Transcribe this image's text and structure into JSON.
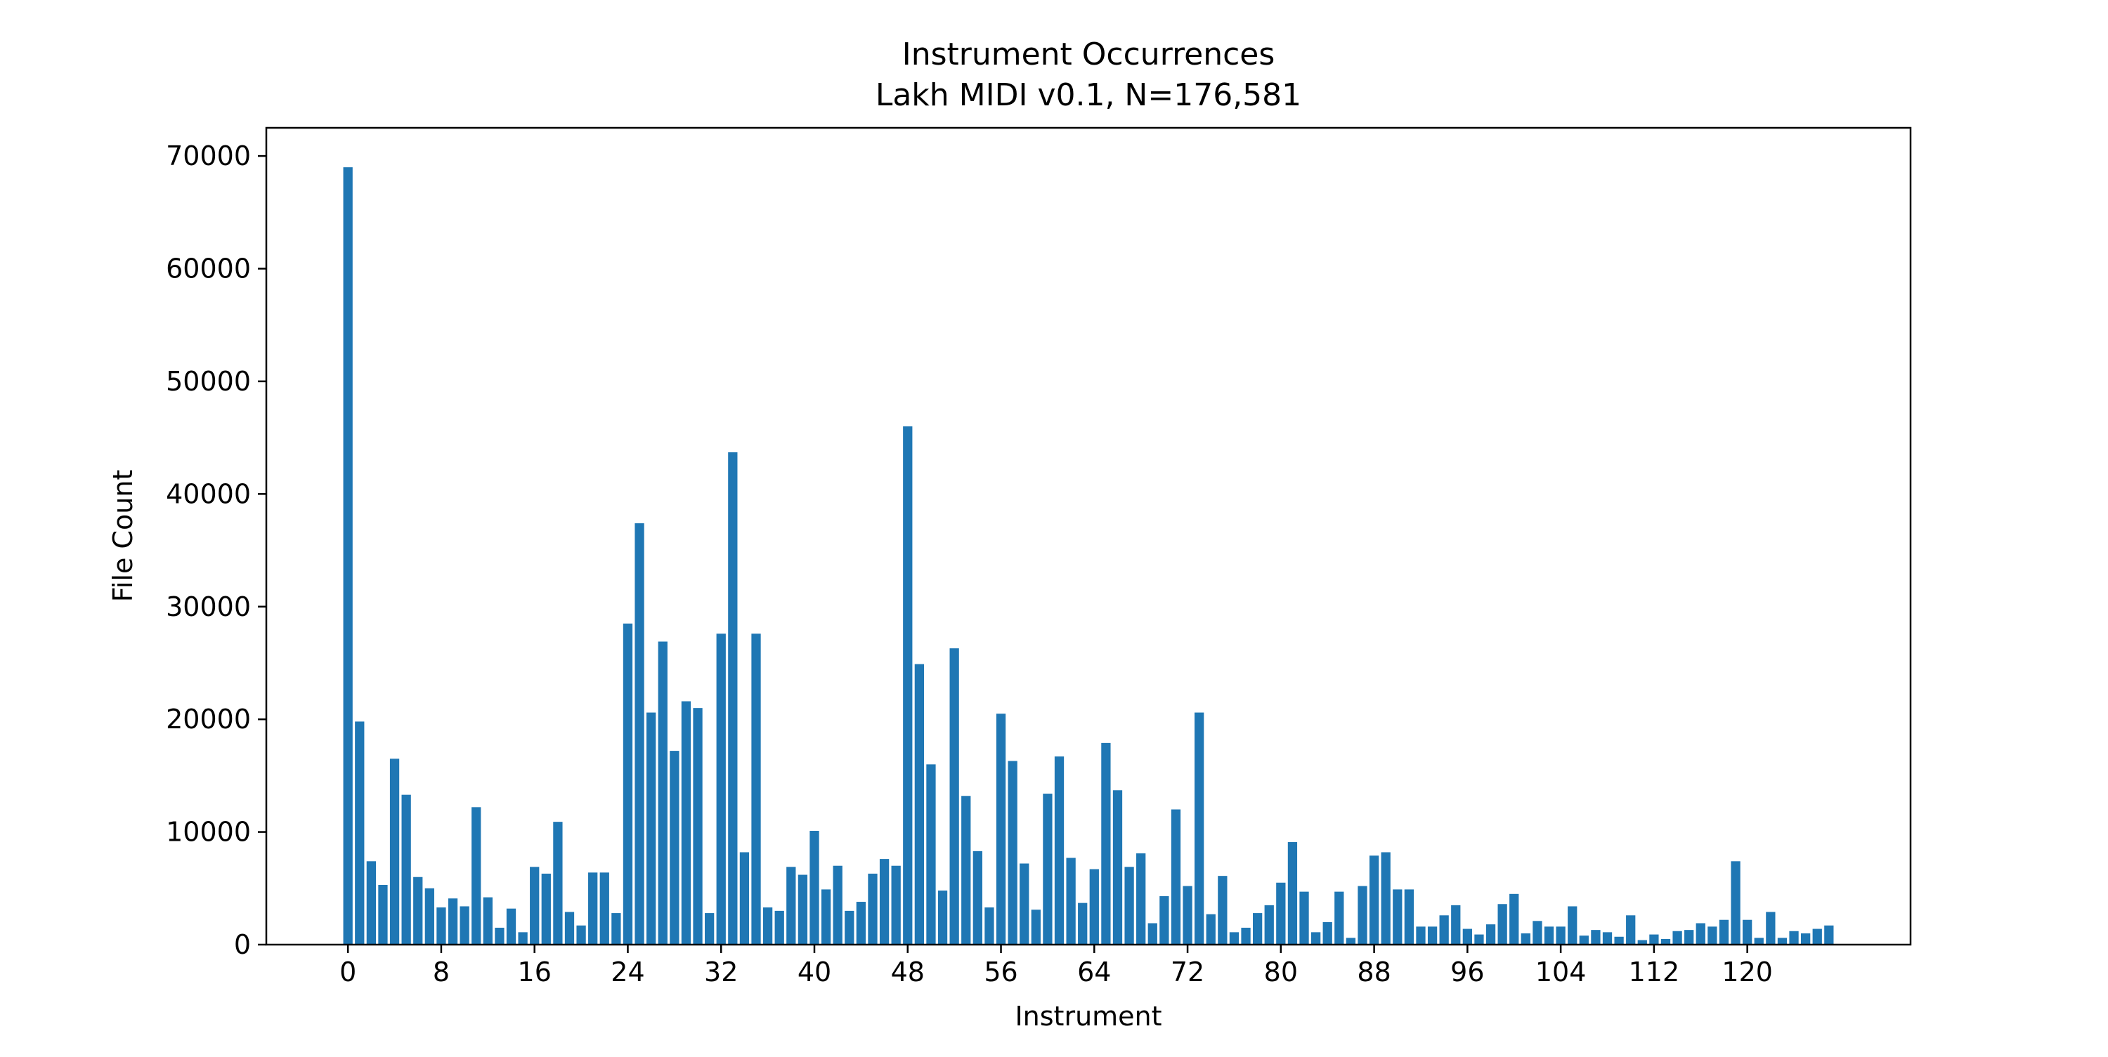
{
  "chart_data": {
    "type": "bar",
    "title": "Instrument Occurrences",
    "subtitle": "Lakh MIDI v0.1, N=176,581",
    "xlabel": "Instrument",
    "ylabel": "File Count",
    "x": [
      0,
      1,
      2,
      3,
      4,
      5,
      6,
      7,
      8,
      9,
      10,
      11,
      12,
      13,
      14,
      15,
      16,
      17,
      18,
      19,
      20,
      21,
      22,
      23,
      24,
      25,
      26,
      27,
      28,
      29,
      30,
      31,
      32,
      33,
      34,
      35,
      36,
      37,
      38,
      39,
      40,
      41,
      42,
      43,
      44,
      45,
      46,
      47,
      48,
      49,
      50,
      51,
      52,
      53,
      54,
      55,
      56,
      57,
      58,
      59,
      60,
      61,
      62,
      63,
      64,
      65,
      66,
      67,
      68,
      69,
      70,
      71,
      72,
      73,
      74,
      75,
      76,
      77,
      78,
      79,
      80,
      81,
      82,
      83,
      84,
      85,
      86,
      87,
      88,
      89,
      90,
      91,
      92,
      93,
      94,
      95,
      96,
      97,
      98,
      99,
      100,
      101,
      102,
      103,
      104,
      105,
      106,
      107,
      108,
      109,
      110,
      111,
      112,
      113,
      114,
      115,
      116,
      117,
      118,
      119,
      120,
      121,
      122,
      123,
      124,
      125,
      126,
      127
    ],
    "values": [
      69000,
      19800,
      7400,
      5300,
      16500,
      13300,
      6000,
      5000,
      3300,
      4100,
      3400,
      12200,
      4200,
      1500,
      3200,
      1100,
      6900,
      6300,
      10900,
      2900,
      1700,
      6400,
      6400,
      2800,
      28500,
      37400,
      20600,
      26900,
      17200,
      21600,
      21000,
      2800,
      27600,
      43700,
      8200,
      27600,
      3300,
      3000,
      6900,
      6200,
      10100,
      4900,
      7000,
      3000,
      3800,
      6300,
      7600,
      7000,
      46000,
      24900,
      16000,
      4800,
      26300,
      13200,
      8300,
      3300,
      20500,
      16300,
      7200,
      3100,
      13400,
      16700,
      7700,
      3700,
      6700,
      17900,
      13700,
      6900,
      8100,
      1900,
      4300,
      12000,
      5200,
      20600,
      2700,
      6100,
      1100,
      1500,
      2800,
      3500,
      5500,
      9100,
      4700,
      1100,
      2000,
      4700,
      600,
      5200,
      7900,
      8200,
      4900,
      4900,
      1600,
      1600,
      2600,
      3500,
      1400,
      900,
      1800,
      3600,
      4500,
      1000,
      2100,
      1600,
      1600,
      3400,
      800,
      1300,
      1100,
      700,
      2600,
      400,
      900,
      500,
      1200,
      1300,
      1900,
      1600,
      2200,
      7400,
      2200,
      600,
      2900,
      600,
      1200,
      1000,
      1400,
      1700
    ],
    "x_ticks": [
      "0",
      "8",
      "16",
      "24",
      "32",
      "40",
      "48",
      "56",
      "64",
      "72",
      "80",
      "88",
      "96",
      "104",
      "112",
      "120"
    ],
    "y_ticks": [
      "0",
      "10000",
      "20000",
      "30000",
      "40000",
      "50000",
      "60000",
      "70000"
    ],
    "xlim": [
      -7,
      134
    ],
    "ylim": [
      0,
      72500
    ],
    "bar_color": "#1f77b4",
    "grid": false,
    "legend": "none"
  }
}
